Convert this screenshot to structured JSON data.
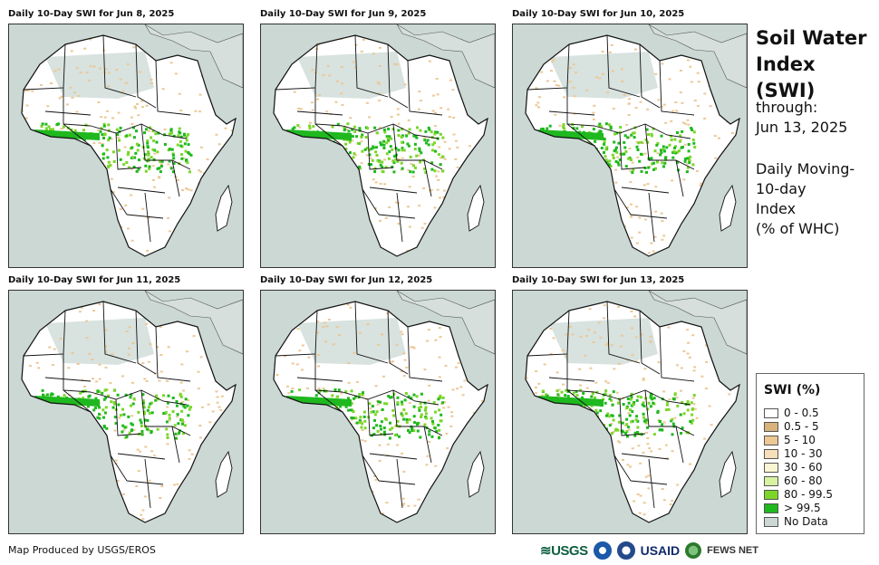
{
  "panels": [
    {
      "title": "Daily 10-Day SWI for Jun 8, 2025"
    },
    {
      "title": "Daily 10-Day SWI for Jun 9, 2025"
    },
    {
      "title": "Daily 10-Day SWI for Jun 10, 2025"
    },
    {
      "title": "Daily 10-Day SWI for Jun 11, 2025"
    },
    {
      "title": "Daily 10-Day SWI for Jun 12, 2025"
    },
    {
      "title": "Daily 10-Day SWI for Jun 13, 2025"
    }
  ],
  "sidebar": {
    "title_line1": "Soil Water",
    "title_line2": "Index (SWI)",
    "through_label": "through:",
    "through_date": "Jun 13, 2025",
    "method_line1": "Daily Moving-",
    "method_line2": "10-day",
    "method_line3": "Index",
    "method_line4": "(% of WHC)"
  },
  "legend": {
    "title": "SWI (%)",
    "items": [
      {
        "label": "0 - 0.5",
        "color": "#ffffff"
      },
      {
        "label": "0.5 - 5",
        "color": "#d9b27c"
      },
      {
        "label": "5 - 10",
        "color": "#ecc895"
      },
      {
        "label": "10 - 30",
        "color": "#f7dfba"
      },
      {
        "label": "30 - 60",
        "color": "#fbf6d2"
      },
      {
        "label": "60 - 80",
        "color": "#d8f2a2"
      },
      {
        "label": "80 - 99.5",
        "color": "#7cd62a"
      },
      {
        "label": "> 99.5",
        "color": "#1fb81f"
      },
      {
        "label": "No Data",
        "color": "#cbd8d4"
      }
    ]
  },
  "footer": {
    "credit": "Map Produced by USGS/EROS",
    "logo_usgs": "≋USGS",
    "logo_usaid": "USAID",
    "logo_fews": "FEWS NET"
  },
  "colors": {
    "ocean": "#cbd8d4",
    "land": "#ffffff",
    "dry": "#ecc895",
    "wet": "#7cd62a",
    "saturated": "#1fb81f",
    "border": "#111111"
  }
}
